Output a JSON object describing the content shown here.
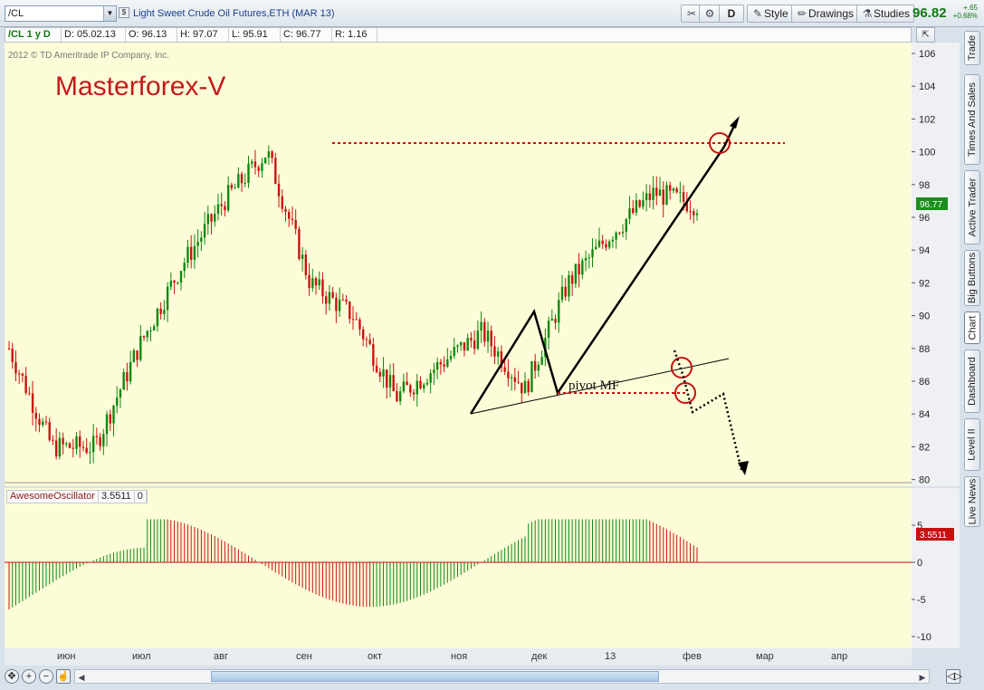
{
  "toolbar": {
    "symbol": "/CL",
    "instrument": "Light Sweet Crude Oil Futures,ETH (MAR 13)",
    "d_label": "D",
    "style_label": "Style",
    "drawings_label": "Drawings",
    "studies_label": "Studies",
    "last_price": "96.82",
    "change": "+.65",
    "change_pct": "+0.68%"
  },
  "infobar": {
    "symbol_period": "/CL 1 y D",
    "date": "D: 05.02.13",
    "open": "O: 96.13",
    "high": "H: 97.07",
    "low": "L: 95.91",
    "close": "C: 96.77",
    "range": "R: 1.16"
  },
  "chart": {
    "copyright": "2012 © TD Ameritrade IP Company, Inc.",
    "watermark": "Masterforex-V",
    "annotation": "pivot MF",
    "current_price_label": "96.77",
    "y_ticks": [
      "106",
      "104",
      "102",
      "100",
      "98",
      "96",
      "94",
      "92",
      "90",
      "88",
      "86",
      "84",
      "82",
      "80"
    ],
    "colors": {
      "background": "#fdfcd8",
      "up": "#118811",
      "down": "#cc1111",
      "annotation_red": "#c81010"
    }
  },
  "oscillator": {
    "name": "AwesomeOscillator",
    "value": "3.5511",
    "param": "0",
    "value_label": "3.5511",
    "y_ticks": [
      "5",
      "0",
      "-5",
      "-10"
    ]
  },
  "x_axis": [
    "июн",
    "июл",
    "авг",
    "сен",
    "окт",
    "ноя",
    "дек",
    "13",
    "фев",
    "мар",
    "апр"
  ],
  "sidebar": {
    "tabs": [
      "Trade",
      "Times And Sales",
      "Active Trader",
      "Big Buttons",
      "Chart",
      "Dashboard",
      "Level II",
      "Live News"
    ],
    "active": "Chart"
  },
  "chart_data": {
    "type": "candlestick",
    "title": "Light Sweet Crude Oil Futures,ETH (MAR 13)",
    "xlabel": "",
    "ylabel": "",
    "ylim": [
      80,
      107
    ],
    "x_labels": [
      "июн",
      "июл",
      "авг",
      "сен",
      "окт",
      "ноя",
      "дек",
      "13",
      "фев",
      "мар",
      "апр"
    ],
    "approx_close_path": [
      {
        "x": "июн",
        "y": 88
      },
      {
        "x": "июн",
        "y": 82
      },
      {
        "x": "июл",
        "y": 82
      },
      {
        "x": "июл",
        "y": 88
      },
      {
        "x": "авг",
        "y": 93
      },
      {
        "x": "сен",
        "y": 97
      },
      {
        "x": "сен",
        "y": 100
      },
      {
        "x": "окт",
        "y": 92
      },
      {
        "x": "окт",
        "y": 90
      },
      {
        "x": "ноя",
        "y": 85
      },
      {
        "x": "ноя",
        "y": 87
      },
      {
        "x": "дек",
        "y": 89
      },
      {
        "x": "дек",
        "y": 85.5
      },
      {
        "x": "13",
        "y": 92
      },
      {
        "x": "13",
        "y": 95
      },
      {
        "x": "фев",
        "y": 97.5
      },
      {
        "x": "фев",
        "y": 96.77
      }
    ],
    "last_close": 96.77,
    "oscillator": {
      "name": "AwesomeOscillator",
      "last": 3.5511,
      "ylim": [
        -11,
        6
      ]
    },
    "grid": false
  }
}
